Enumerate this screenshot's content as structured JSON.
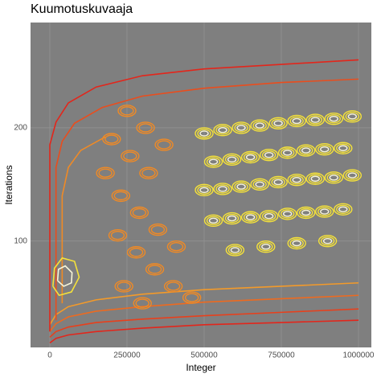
{
  "chart_data": {
    "type": "contour",
    "title": "Kuumotuskuvaaja",
    "x_label": "Integer",
    "y_label": "Iterations",
    "xlim": [
      -62500,
      1041667
    ],
    "ylim": [
      6,
      293
    ],
    "xticks": [
      0,
      250000,
      500000,
      750000,
      1000000
    ],
    "yticks": [
      100,
      200
    ],
    "grid": true,
    "lines": [
      {
        "color": "#e3261b",
        "x": [
          0,
          20000,
          60000,
          150000,
          300000,
          500000,
          750000,
          1000000
        ],
        "y": [
          10,
          14,
          17,
          20,
          23,
          26,
          28,
          30
        ]
      },
      {
        "color": "#e8401c",
        "x": [
          0,
          20000,
          60000,
          150000,
          300000,
          500000,
          750000,
          1000000
        ],
        "y": [
          15,
          20,
          24,
          28,
          31,
          34,
          37,
          40
        ]
      },
      {
        "color": "#ee6a1f",
        "x": [
          0,
          20000,
          60000,
          150000,
          300000,
          500000,
          750000,
          1000000
        ],
        "y": [
          20,
          27,
          33,
          38,
          42,
          46,
          49,
          52
        ]
      },
      {
        "color": "#f39a2a",
        "x": [
          0,
          20000,
          60000,
          150000,
          300000,
          500000,
          750000,
          1000000
        ],
        "y": [
          26,
          35,
          42,
          48,
          53,
          57,
          60,
          63
        ]
      },
      {
        "color": "#e3261b",
        "x": [
          0,
          0,
          20000,
          60000,
          150000,
          300000,
          500000,
          750000,
          1000000
        ],
        "y": [
          20,
          185,
          205,
          222,
          236,
          246,
          252,
          256,
          260
        ]
      },
      {
        "color": "#ea4d1d",
        "x": [
          20000,
          20000,
          40000,
          80000,
          170000,
          300000,
          500000,
          750000,
          1000000
        ],
        "y": [
          30,
          165,
          188,
          204,
          218,
          228,
          235,
          240,
          243
        ]
      },
      {
        "color": "#f08a25",
        "x": [
          40000,
          40000,
          60000,
          100000,
          180000
        ],
        "y": [
          45,
          140,
          165,
          180,
          192
        ]
      },
      {
        "color": "#f5e23a",
        "x": [
          10000,
          30000,
          70000,
          95000,
          80000,
          40000,
          15000,
          10000
        ],
        "y": [
          60,
          52,
          55,
          68,
          82,
          85,
          76,
          60
        ]
      },
      {
        "color": "#f8f5d8",
        "x": [
          25000,
          45000,
          70000,
          72000,
          50000,
          28000,
          25000
        ],
        "y": [
          65,
          60,
          63,
          72,
          78,
          75,
          65
        ]
      }
    ],
    "blobs": [
      {
        "color": "#f08a25",
        "rings": 2,
        "x": [
          200000,
          260000,
          320000,
          230000,
          290000,
          350000,
          410000,
          250000,
          310000,
          370000,
          220000,
          280000,
          340000,
          400000,
          460000,
          180000,
          240000,
          300000
        ],
        "y": [
          190,
          175,
          160,
          140,
          125,
          110,
          95,
          215,
          200,
          185,
          105,
          90,
          75,
          60,
          50,
          160,
          60,
          45
        ]
      },
      {
        "color": "#f5e23a",
        "rings": 3,
        "x": [
          500000,
          560000,
          620000,
          680000,
          740000,
          800000,
          860000,
          920000,
          980000,
          530000,
          590000,
          650000,
          710000,
          770000,
          830000,
          890000,
          950000,
          500000,
          560000,
          620000,
          680000,
          740000,
          800000,
          860000,
          920000,
          980000,
          530000,
          590000,
          650000,
          710000,
          770000,
          830000,
          890000,
          950000,
          600000,
          700000,
          800000,
          900000
        ],
        "y": [
          195,
          198,
          200,
          202,
          204,
          206,
          207,
          208,
          210,
          170,
          172,
          174,
          176,
          178,
          180,
          181,
          182,
          145,
          146,
          148,
          150,
          152,
          154,
          155,
          156,
          158,
          118,
          120,
          121,
          122,
          124,
          125,
          126,
          128,
          92,
          95,
          98,
          100
        ]
      }
    ]
  }
}
